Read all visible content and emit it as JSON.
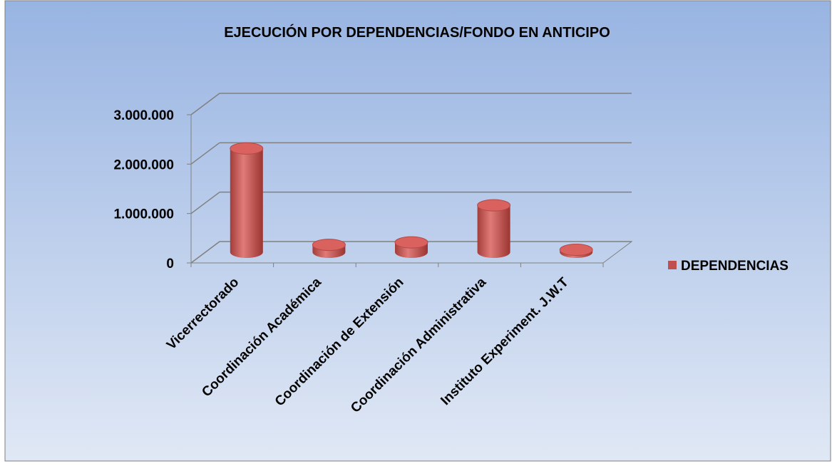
{
  "chart_data": {
    "type": "bar",
    "title": "EJECUCIÓN POR DEPENDENCIAS/FONDO EN ANTICIPO",
    "categories": [
      "Vicerrectorado",
      "Coordinación Académica",
      "Coordinación de Extensión",
      "Coordinación Administrativa",
      "Instituto Experiment. J.W.T"
    ],
    "series": [
      {
        "name": "DEPENDENCIAS",
        "color": "#c0504d",
        "values": [
          2100000,
          150000,
          200000,
          950000,
          50000
        ]
      }
    ],
    "ylim": [
      0,
      3000000
    ],
    "yticks": [
      0,
      {
        "value": 1000000,
        "label": "1.000.000"
      },
      {
        "value": 2000000,
        "label": "2.000.000"
      },
      {
        "value": 3000000,
        "label": "3.000.000"
      }
    ],
    "grid": true,
    "legend": "right",
    "three_d": true
  }
}
